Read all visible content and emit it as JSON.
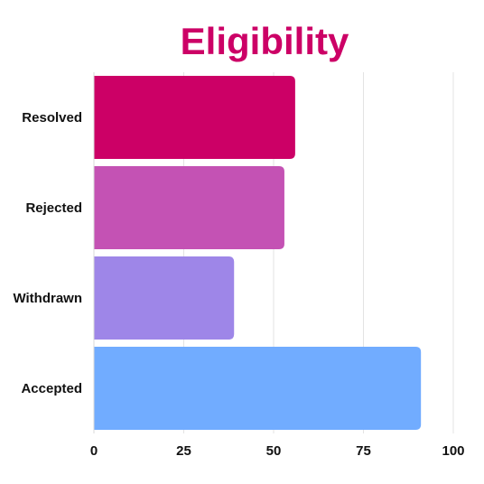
{
  "chart_data": {
    "type": "bar",
    "orientation": "horizontal",
    "title": "Eligibility",
    "title_color": "#CC0066",
    "categories": [
      "Resolved",
      "Rejected",
      "Withdrawn",
      "Accepted"
    ],
    "values": [
      56,
      53,
      39,
      91
    ],
    "colors": [
      "#CC0066",
      "#C452B4",
      "#9E86E8",
      "#71ACFF"
    ],
    "xlim": [
      0,
      100
    ],
    "xticks": [
      "0",
      "25",
      "50",
      "75",
      "100"
    ],
    "xlabel": "",
    "ylabel": "",
    "grid": "vertical"
  }
}
